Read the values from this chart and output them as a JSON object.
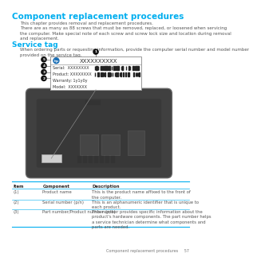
{
  "bg_color": "#ffffff",
  "title": "Component replacement procedures",
  "title_color": "#00aeef",
  "title_fontsize": 7.5,
  "body_text1": "This chapter provides removal and replacement procedures.",
  "body_text2": "There are as many as 88 screws that must be removed, replaced, or loosened when servicing\nthe computer. Make special note of each screw and screw lock size and location during removal\nand replacement.",
  "section_title": "Service tag",
  "section_title_color": "#00aeef",
  "section_title_fontsize": 6.5,
  "section_body": "When ordering parts or requesting information, provide the computer serial number and model number\nprovided on the service tag.",
  "body_fontsize": 4.0,
  "tag_lines": [
    "Serial:  XXXXXXXX",
    "Product: XXXXXXXX",
    "Warranty: 1y1y0y",
    "Model:  XXXXXXX"
  ],
  "tag_header": "XXXXXXXXXX",
  "table_headers": [
    "Item",
    "Component",
    "Description"
  ],
  "table_rows": [
    [
      "(1)",
      "Product name",
      "This is the product name affixed to the front of\nthe computer."
    ],
    [
      "(2)",
      "Serial number (p/n)",
      "This is an alphanumeric identifier that is unique to\neach product."
    ],
    [
      "(3)",
      "Part number/Product number (p/n)",
      "This number provides specific information about the\nproduct's hardware components. The part number helps\na service technician determine what components and\nparts are needed."
    ]
  ],
  "table_fontsize": 3.8,
  "footer_text": "Component replacement procedures     57",
  "footer_fontsize": 3.5,
  "footer_color": "#777777",
  "line_color": "#00aeef",
  "callout_color": "#1a1a1a"
}
